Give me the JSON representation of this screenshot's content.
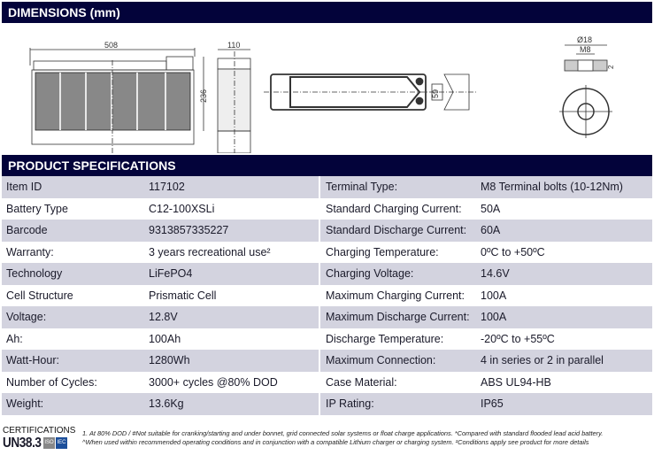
{
  "dimensions": {
    "title": "DIMENSIONS (mm)",
    "length": "508",
    "width": "110",
    "height": "236",
    "terminal_spacing": "59",
    "terminal_diameter": "Ø18",
    "terminal_thread": "M8",
    "terminal_depth": "2"
  },
  "specs": {
    "title": "PRODUCT SPECIFICATIONS",
    "rows": [
      {
        "l1": "Item ID",
        "v1": "117102",
        "l2": "Terminal Type:",
        "v2": "M8 Terminal bolts (10-12Nm)"
      },
      {
        "l1": "Battery Type",
        "v1": "C12-100XSLi",
        "l2": "Standard Charging Current:",
        "v2": "50A"
      },
      {
        "l1": "Barcode",
        "v1": "9313857335227",
        "l2": "Standard Discharge Current:",
        "v2": "60A"
      },
      {
        "l1": "Warranty:",
        "v1": "3 years recreational use²",
        "l2": "Charging Temperature:",
        "v2": "0ºC to +50ºC"
      },
      {
        "l1": "Technology",
        "v1": "LiFePO4",
        "l2": "Charging Voltage:",
        "v2": "14.6V"
      },
      {
        "l1": "Cell Structure",
        "v1": "Prismatic Cell",
        "l2": "Maximum Charging Current:",
        "v2": "100A"
      },
      {
        "l1": "Voltage:",
        "v1": "12.8V",
        "l2": "Maximum Discharge Current:",
        "v2": "100A"
      },
      {
        "l1": "Ah:",
        "v1": "100Ah",
        "l2": "Discharge Temperature:",
        "v2": "-20ºC to +55ºC"
      },
      {
        "l1": "Watt-Hour:",
        "v1": "1280Wh",
        "l2": "Maximum Connection:",
        "v2": "4 in series or 2 in parallel"
      },
      {
        "l1": "Number of Cycles:",
        "v1": "3000+ cycles @80% DOD",
        "l2": "Case Material:",
        "v2": "ABS UL94-HB"
      },
      {
        "l1": "Weight:",
        "v1": "13.6Kg",
        "l2": "IP Rating:",
        "v2": "IP65"
      }
    ]
  },
  "footer": {
    "cert_label": "CERTIFICATIONS",
    "cert_code": "UN38.3",
    "logos": [
      "ISO",
      "IEC"
    ],
    "note1": "1. At 80% DOD / #Not suitable for cranking/starting and under bonnet, grid connected solar systems or float charge applications. *Compared with standard flooded lead acid battery.",
    "note2": "^When used within recommended operating conditions and in conjunction with a compatible Lithium charger or charging system. ²Conditions apply see product for more details"
  }
}
